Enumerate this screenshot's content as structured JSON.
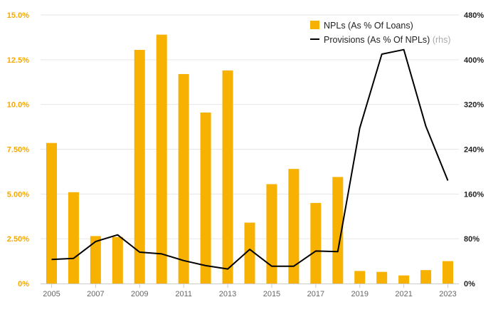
{
  "chart_data": {
    "type": "bar+line",
    "categories": [
      "2005",
      "2006",
      "2007",
      "2008",
      "2009",
      "2010",
      "2011",
      "2012",
      "2013",
      "2014",
      "2015",
      "2016",
      "2017",
      "2018",
      "2019",
      "2020",
      "2021",
      "2022",
      "2023"
    ],
    "series": [
      {
        "name": "NPLs (As % Of Loans)",
        "type": "bar",
        "axis": "left",
        "color": "#f7b100",
        "values": [
          7.85,
          5.1,
          2.65,
          2.6,
          13.05,
          13.9,
          11.7,
          9.55,
          11.9,
          3.4,
          5.55,
          6.4,
          4.5,
          5.95,
          0.7,
          0.65,
          0.45,
          0.75,
          1.25
        ]
      },
      {
        "name": "Provisions (As % Of NPLs)",
        "name_suffix": "(rhs)",
        "type": "line",
        "axis": "right",
        "color": "#000000",
        "values": [
          43,
          45,
          75,
          87,
          56,
          53,
          41,
          32,
          26,
          61,
          31,
          31,
          58,
          57,
          278,
          410,
          418,
          281,
          184
        ]
      }
    ],
    "x_tick_labels": [
      "2005",
      "2007",
      "2009",
      "2011",
      "2013",
      "2015",
      "2017",
      "2019",
      "2021",
      "2023"
    ],
    "left_axis": {
      "ylim": [
        0,
        15
      ],
      "ticks": [
        0,
        2.5,
        5,
        7.5,
        10,
        12.5,
        15
      ],
      "tick_labels": [
        "0%",
        "2.50%",
        "5.00%",
        "7.50%",
        "10.0%",
        "12.5%",
        "15.0%"
      ],
      "color": "#f5a800"
    },
    "right_axis": {
      "ylim": [
        0,
        480
      ],
      "ticks": [
        0,
        80,
        160,
        240,
        320,
        400,
        480
      ],
      "tick_labels": [
        "0%",
        "80%",
        "160%",
        "240%",
        "320%",
        "400%",
        "480%"
      ],
      "color": "#222222"
    },
    "legend_position": "top-right",
    "grid": true
  }
}
